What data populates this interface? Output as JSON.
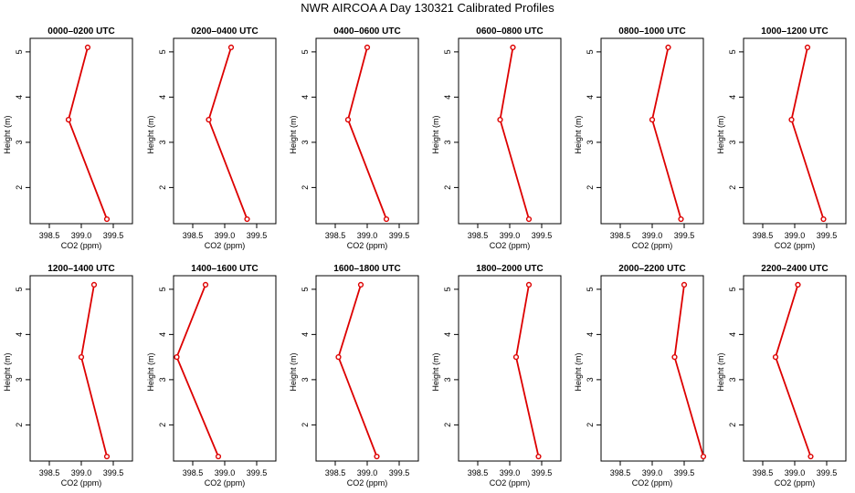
{
  "title": "NWR AIRCOA A  Day 130321  Calibrated Profiles",
  "colors": {
    "line": "#dd0000",
    "axis": "#000000",
    "background": "#ffffff"
  },
  "chart_data": [
    {
      "type": "line",
      "title": "0000–0200 UTC",
      "xlabel": "CO2 (ppm)",
      "ylabel": "Height (m)",
      "xlim": [
        398.2,
        399.8
      ],
      "ylim": [
        1.2,
        5.3
      ],
      "xticks": [
        "398.5",
        "399.0",
        "399.5"
      ],
      "yticks": [
        "2",
        "3",
        "4",
        "5"
      ],
      "grid": false,
      "series": [
        {
          "x": [
            399.1,
            398.8,
            399.4
          ],
          "y": [
            5.1,
            3.5,
            1.3
          ]
        }
      ]
    },
    {
      "type": "line",
      "title": "0200–0400 UTC",
      "xlabel": "CO2 (ppm)",
      "ylabel": "Height (m)",
      "xlim": [
        398.2,
        399.8
      ],
      "ylim": [
        1.2,
        5.3
      ],
      "xticks": [
        "398.5",
        "399.0",
        "399.5"
      ],
      "yticks": [
        "2",
        "3",
        "4",
        "5"
      ],
      "grid": false,
      "series": [
        {
          "x": [
            399.1,
            398.75,
            399.35
          ],
          "y": [
            5.1,
            3.5,
            1.3
          ]
        }
      ]
    },
    {
      "type": "line",
      "title": "0400–0600 UTC",
      "xlabel": "CO2 (ppm)",
      "ylabel": "Height (m)",
      "xlim": [
        398.2,
        399.8
      ],
      "ylim": [
        1.2,
        5.3
      ],
      "xticks": [
        "398.5",
        "399.0",
        "399.5"
      ],
      "yticks": [
        "2",
        "3",
        "4",
        "5"
      ],
      "grid": false,
      "series": [
        {
          "x": [
            399.0,
            398.7,
            399.3
          ],
          "y": [
            5.1,
            3.5,
            1.3
          ]
        }
      ]
    },
    {
      "type": "line",
      "title": "0600–0800 UTC",
      "xlabel": "CO2 (ppm)",
      "ylabel": "Height (m)",
      "xlim": [
        398.2,
        399.8
      ],
      "ylim": [
        1.2,
        5.3
      ],
      "xticks": [
        "398.5",
        "399.0",
        "399.5"
      ],
      "yticks": [
        "2",
        "3",
        "4",
        "5"
      ],
      "grid": false,
      "series": [
        {
          "x": [
            399.05,
            398.85,
            399.3
          ],
          "y": [
            5.1,
            3.5,
            1.3
          ]
        }
      ]
    },
    {
      "type": "line",
      "title": "0800–1000 UTC",
      "xlabel": "CO2 (ppm)",
      "ylabel": "Height (m)",
      "xlim": [
        398.2,
        399.8
      ],
      "ylim": [
        1.2,
        5.3
      ],
      "xticks": [
        "398.5",
        "399.0",
        "399.5"
      ],
      "yticks": [
        "2",
        "3",
        "4",
        "5"
      ],
      "grid": false,
      "series": [
        {
          "x": [
            399.25,
            399.0,
            399.45
          ],
          "y": [
            5.1,
            3.5,
            1.3
          ]
        }
      ]
    },
    {
      "type": "line",
      "title": "1000–1200 UTC",
      "xlabel": "CO2 (ppm)",
      "ylabel": "Height (m)",
      "xlim": [
        398.2,
        399.8
      ],
      "ylim": [
        1.2,
        5.3
      ],
      "xticks": [
        "398.5",
        "399.0",
        "399.5"
      ],
      "yticks": [
        "2",
        "3",
        "4",
        "5"
      ],
      "grid": false,
      "series": [
        {
          "x": [
            399.2,
            398.95,
            399.45
          ],
          "y": [
            5.1,
            3.5,
            1.3
          ]
        }
      ]
    },
    {
      "type": "line",
      "title": "1200–1400 UTC",
      "xlabel": "CO2 (ppm)",
      "ylabel": "Height (m)",
      "xlim": [
        398.2,
        399.8
      ],
      "ylim": [
        1.2,
        5.3
      ],
      "xticks": [
        "398.5",
        "399.0",
        "399.5"
      ],
      "yticks": [
        "2",
        "3",
        "4",
        "5"
      ],
      "grid": false,
      "series": [
        {
          "x": [
            399.2,
            399.0,
            399.4
          ],
          "y": [
            5.1,
            3.5,
            1.3
          ]
        }
      ]
    },
    {
      "type": "line",
      "title": "1400–1600 UTC",
      "xlabel": "CO2 (ppm)",
      "ylabel": "Height (m)",
      "xlim": [
        398.2,
        399.8
      ],
      "ylim": [
        1.2,
        5.3
      ],
      "xticks": [
        "398.5",
        "399.0",
        "399.5"
      ],
      "yticks": [
        "2",
        "3",
        "4",
        "5"
      ],
      "grid": false,
      "series": [
        {
          "x": [
            398.7,
            398.25,
            398.9
          ],
          "y": [
            5.1,
            3.5,
            1.3
          ]
        }
      ]
    },
    {
      "type": "line",
      "title": "1600–1800 UTC",
      "xlabel": "CO2 (ppm)",
      "ylabel": "Height (m)",
      "xlim": [
        398.2,
        399.8
      ],
      "ylim": [
        1.2,
        5.3
      ],
      "xticks": [
        "398.5",
        "399.0",
        "399.5"
      ],
      "yticks": [
        "2",
        "3",
        "4",
        "5"
      ],
      "grid": false,
      "series": [
        {
          "x": [
            398.9,
            398.55,
            399.15
          ],
          "y": [
            5.1,
            3.5,
            1.3
          ]
        }
      ]
    },
    {
      "type": "line",
      "title": "1800–2000 UTC",
      "xlabel": "CO2 (ppm)",
      "ylabel": "Height (m)",
      "xlim": [
        398.2,
        399.8
      ],
      "ylim": [
        1.2,
        5.3
      ],
      "xticks": [
        "398.5",
        "399.0",
        "399.5"
      ],
      "yticks": [
        "2",
        "3",
        "4",
        "5"
      ],
      "grid": false,
      "series": [
        {
          "x": [
            399.3,
            399.1,
            399.45
          ],
          "y": [
            5.1,
            3.5,
            1.3
          ]
        }
      ]
    },
    {
      "type": "line",
      "title": "2000–2200 UTC",
      "xlabel": "CO2 (ppm)",
      "ylabel": "Height (m)",
      "xlim": [
        398.2,
        399.8
      ],
      "ylim": [
        1.2,
        5.3
      ],
      "xticks": [
        "398.5",
        "399.0",
        "399.5"
      ],
      "yticks": [
        "2",
        "3",
        "4",
        "5"
      ],
      "grid": false,
      "series": [
        {
          "x": [
            399.5,
            399.35,
            399.8
          ],
          "y": [
            5.1,
            3.5,
            1.3
          ]
        }
      ]
    },
    {
      "type": "line",
      "title": "2200–2400 UTC",
      "xlabel": "CO2 (ppm)",
      "ylabel": "Height (m)",
      "xlim": [
        398.2,
        399.8
      ],
      "ylim": [
        1.2,
        5.3
      ],
      "xticks": [
        "398.5",
        "399.0",
        "399.5"
      ],
      "yticks": [
        "2",
        "3",
        "4",
        "5"
      ],
      "grid": false,
      "series": [
        {
          "x": [
            399.05,
            398.7,
            399.25
          ],
          "y": [
            5.1,
            3.5,
            1.3
          ]
        }
      ]
    }
  ]
}
